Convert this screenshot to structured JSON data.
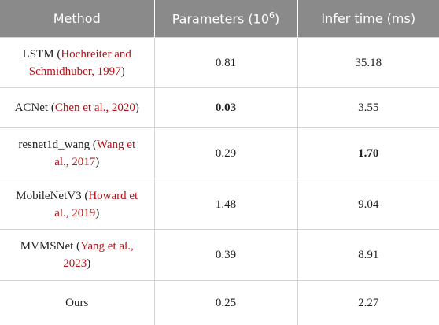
{
  "table": {
    "header": [
      {
        "text": "Method"
      },
      {
        "text": "Parameters (10",
        "sup": "6",
        "tail": ")"
      },
      {
        "text": "Infer time (ms)"
      }
    ],
    "rows": [
      {
        "method": [
          "LSTM (",
          "Hochreiter and Schmidhuber, 1997",
          ")"
        ],
        "params": "0.81",
        "time": "35.18",
        "bold": []
      },
      {
        "method": [
          "ACNet (",
          "Chen et al., 2020",
          ")"
        ],
        "params": "0.03",
        "time": "3.55",
        "bold": [
          "params"
        ]
      },
      {
        "method": [
          "resnet1d_wang (",
          "Wang et al., 2017",
          ")"
        ],
        "params": "0.29",
        "time": "1.70",
        "bold": [
          "time"
        ]
      },
      {
        "method": [
          "MobileNetV3 (",
          "Howard et al., 2019",
          ")"
        ],
        "params": "1.48",
        "time": "9.04",
        "bold": []
      },
      {
        "method": [
          "MVMSNet (",
          "Yang et al., 2023",
          ")"
        ],
        "params": "0.39",
        "time": "8.91",
        "bold": []
      },
      {
        "method": [
          "Ours"
        ],
        "params": "0.25",
        "time": "2.27",
        "bold": []
      }
    ]
  }
}
